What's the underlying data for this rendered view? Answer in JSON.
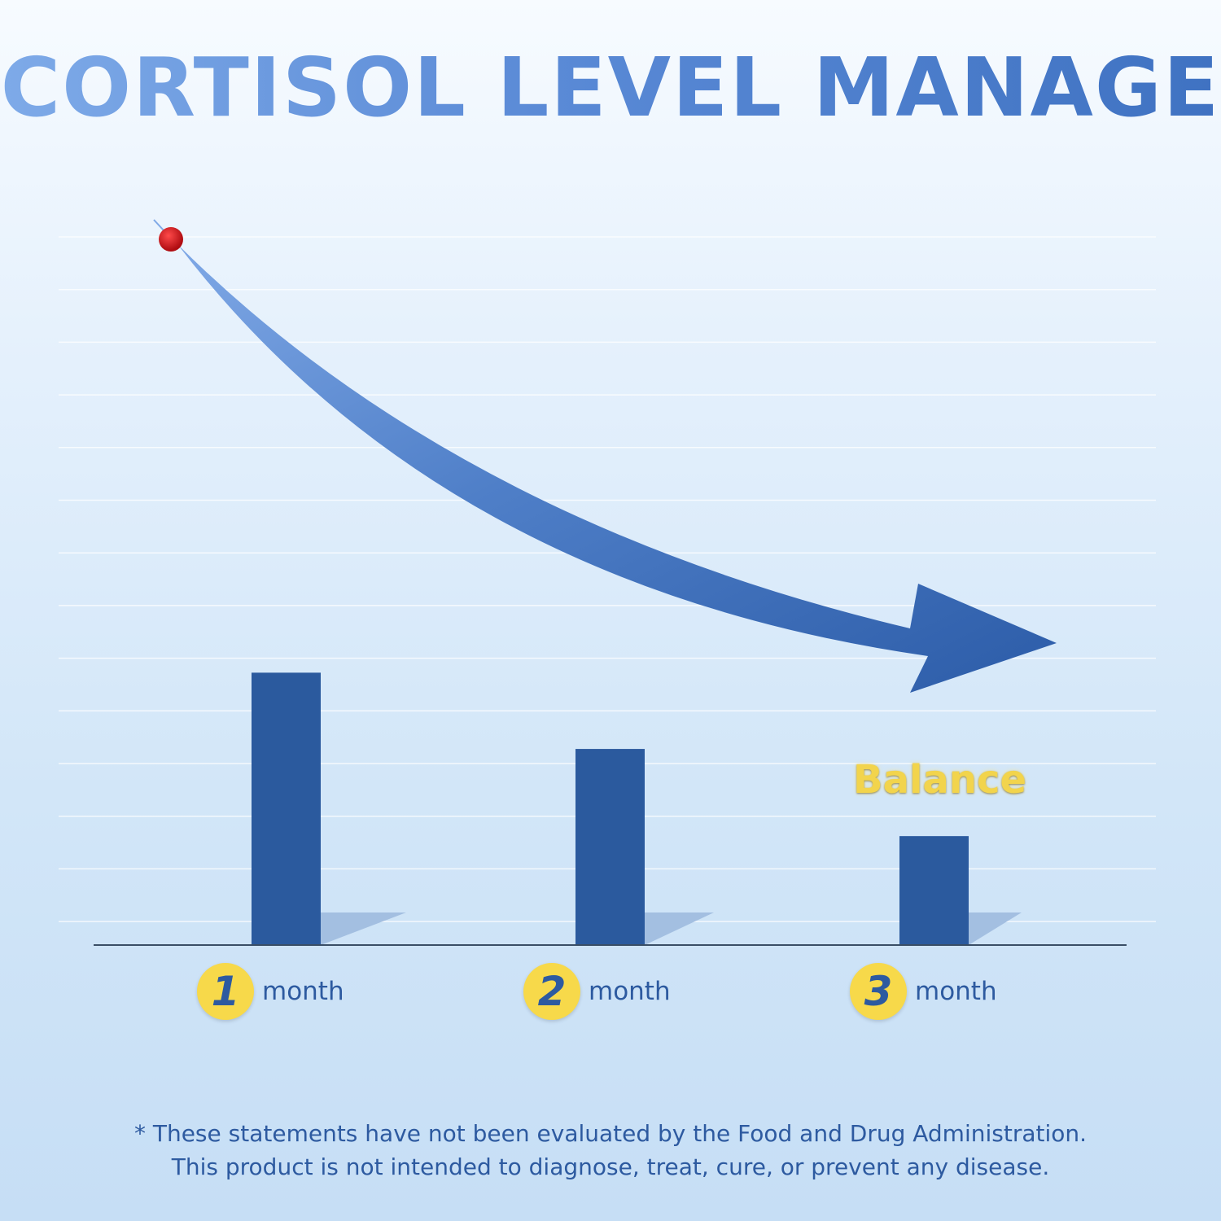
{
  "chart_data": {
    "type": "bar",
    "title": "CORTISOL LEVEL MANAGE",
    "categories": [
      {
        "badge": "1",
        "label": "month"
      },
      {
        "badge": "2",
        "label": "month"
      },
      {
        "badge": "3",
        "label": "month"
      }
    ],
    "values": [
      100,
      72,
      40
    ],
    "ylim": [
      0,
      260
    ],
    "grid": true,
    "annotation": "Balance",
    "trend": "decreasing"
  },
  "disclaimer": {
    "line1": "* These statements have not been evaluated by the Food and Drug Administration.",
    "line2": "This product is not intended to diagnose, treat, cure, or prevent any disease."
  },
  "colors": {
    "bar": "#2b5a9e",
    "bar_shadow": "#a3bfe1",
    "arrow": "#3564ae",
    "marker": "#c8141b",
    "badge": "#f7d94a",
    "text": "#2d5aa0",
    "annotation": "#f2d44c"
  }
}
